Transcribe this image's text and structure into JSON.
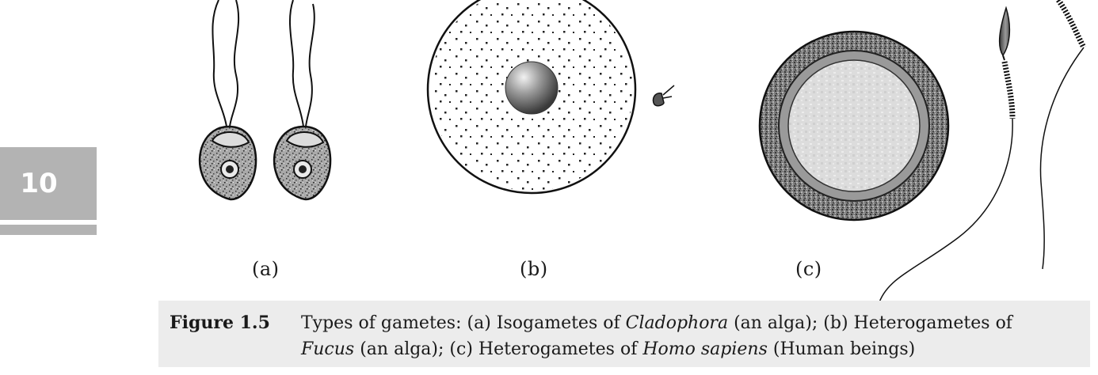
{
  "page_number": "10",
  "panels": {
    "a": "(a)",
    "b": "(b)",
    "c": "(c)"
  },
  "caption": {
    "label": "Figure 1.5",
    "line1_pre": "Types of gametes: (a) Isogametes of ",
    "line1_italic": "Cladophora",
    "line1_post": " (an alga); (b) Heterogametes of",
    "line2_italic1": "Fucus",
    "line2_mid": " (an alga); (c) Heterogametes of ",
    "line2_italic2": "Homo sapiens",
    "line2_post": " (Human beings)"
  }
}
